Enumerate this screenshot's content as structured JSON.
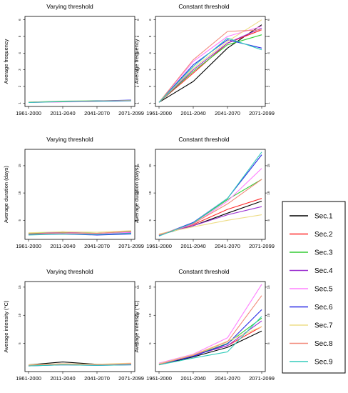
{
  "colors": {
    "Sec.1": "#000000",
    "Sec.2": "#ff2a2a",
    "Sec.3": "#33cc33",
    "Sec.4": "#9b30d0",
    "Sec.5": "#ff80ff",
    "Sec.6": "#2a2ae6",
    "Sec.7": "#eedd88",
    "Sec.8": "#f28a7a",
    "Sec.9": "#33ccbb"
  },
  "legend": {
    "placement": "right",
    "entries": [
      "Sec.1",
      "Sec.2",
      "Sec.3",
      "Sec.4",
      "Sec.5",
      "Sec.6",
      "Sec.7",
      "Sec.8",
      "Sec.9"
    ]
  },
  "chart_data": [
    {
      "type": "line",
      "title": "Varying threshold",
      "ylabel": "Average frequency",
      "xlabel": "",
      "categories": [
        "1961-2000",
        "2011-2040",
        "2041-2070",
        "2071-2099"
      ],
      "ylim": [
        0.8,
        6.2
      ],
      "yticks": [
        1,
        2,
        3,
        4,
        5,
        6
      ],
      "grid": false,
      "series": [
        {
          "name": "Sec.1",
          "values": [
            1.05,
            1.1,
            1.12,
            1.15
          ]
        },
        {
          "name": "Sec.2",
          "values": [
            1.05,
            1.08,
            1.1,
            1.14
          ]
        },
        {
          "name": "Sec.3",
          "values": [
            1.06,
            1.12,
            1.14,
            1.16
          ]
        },
        {
          "name": "Sec.4",
          "values": [
            1.04,
            1.08,
            1.1,
            1.13
          ]
        },
        {
          "name": "Sec.5",
          "values": [
            1.05,
            1.07,
            1.09,
            1.12
          ]
        },
        {
          "name": "Sec.6",
          "values": [
            1.05,
            1.1,
            1.13,
            1.18
          ]
        },
        {
          "name": "Sec.7",
          "values": [
            1.06,
            1.09,
            1.12,
            1.15
          ]
        },
        {
          "name": "Sec.8",
          "values": [
            1.05,
            1.1,
            1.12,
            1.17
          ]
        },
        {
          "name": "Sec.9",
          "values": [
            1.04,
            1.09,
            1.11,
            1.14
          ]
        }
      ]
    },
    {
      "type": "line",
      "title": "Constant threshold",
      "ylabel": "Average frequency",
      "xlabel": "",
      "categories": [
        "1961-2000",
        "2011-2040",
        "2041-2070",
        "2071-2099"
      ],
      "ylim": [
        0.8,
        6.2
      ],
      "yticks": [
        1,
        2,
        3,
        4,
        5,
        6
      ],
      "grid": false,
      "series": [
        {
          "name": "Sec.1",
          "values": [
            1.05,
            2.3,
            4.3,
            5.7
          ]
        },
        {
          "name": "Sec.2",
          "values": [
            1.05,
            2.8,
            4.6,
            5.4
          ]
        },
        {
          "name": "Sec.3",
          "values": [
            1.05,
            2.9,
            4.5,
            5.1
          ]
        },
        {
          "name": "Sec.4",
          "values": [
            1.05,
            3.0,
            4.6,
            5.5
          ]
        },
        {
          "name": "Sec.5",
          "values": [
            1.05,
            3.5,
            5.0,
            5.6
          ]
        },
        {
          "name": "Sec.6",
          "values": [
            1.05,
            3.3,
            4.8,
            4.3
          ]
        },
        {
          "name": "Sec.7",
          "values": [
            1.05,
            3.1,
            4.7,
            6.0
          ]
        },
        {
          "name": "Sec.8",
          "values": [
            1.05,
            3.6,
            5.3,
            5.4
          ]
        },
        {
          "name": "Sec.9",
          "values": [
            1.05,
            3.2,
            4.9,
            4.2
          ]
        }
      ]
    },
    {
      "type": "line",
      "title": "Varying threshold",
      "ylabel": "Average duration (days)",
      "xlabel": "",
      "categories": [
        "1961-2000",
        "2011-2040",
        "2041-2070",
        "2071-2099"
      ],
      "ylim": [
        1.5,
        18
      ],
      "yticks": [
        5,
        10,
        15
      ],
      "grid": false,
      "series": [
        {
          "name": "Sec.1",
          "values": [
            2.4,
            2.5,
            2.4,
            2.6
          ]
        },
        {
          "name": "Sec.2",
          "values": [
            2.5,
            2.7,
            2.5,
            2.8
          ]
        },
        {
          "name": "Sec.3",
          "values": [
            2.6,
            2.8,
            2.6,
            2.9
          ]
        },
        {
          "name": "Sec.4",
          "values": [
            2.4,
            2.9,
            2.5,
            2.7
          ]
        },
        {
          "name": "Sec.5",
          "values": [
            2.5,
            2.6,
            2.5,
            2.8
          ]
        },
        {
          "name": "Sec.6",
          "values": [
            2.4,
            2.5,
            2.3,
            2.5
          ]
        },
        {
          "name": "Sec.7",
          "values": [
            2.7,
            2.9,
            2.8,
            3.1
          ]
        },
        {
          "name": "Sec.8",
          "values": [
            2.5,
            2.7,
            2.6,
            3.0
          ]
        },
        {
          "name": "Sec.9",
          "values": [
            2.3,
            2.5,
            2.4,
            2.6
          ]
        }
      ]
    },
    {
      "type": "line",
      "title": "Constant threshold",
      "ylabel": "Average duration (days)",
      "xlabel": "",
      "categories": [
        "1961-2000",
        "2011-2040",
        "2041-2070",
        "2071-2099"
      ],
      "ylim": [
        1.5,
        18
      ],
      "yticks": [
        5,
        10,
        15
      ],
      "grid": false,
      "series": [
        {
          "name": "Sec.1",
          "values": [
            2.3,
            4.0,
            6.3,
            8.5
          ]
        },
        {
          "name": "Sec.2",
          "values": [
            2.3,
            4.2,
            7.0,
            9.0
          ]
        },
        {
          "name": "Sec.3",
          "values": [
            2.2,
            4.5,
            8.8,
            12.5
          ]
        },
        {
          "name": "Sec.4",
          "values": [
            2.4,
            4.0,
            6.0,
            7.5
          ]
        },
        {
          "name": "Sec.5",
          "values": [
            2.3,
            4.3,
            8.5,
            14.5
          ]
        },
        {
          "name": "Sec.6",
          "values": [
            2.2,
            4.6,
            9.0,
            17.0
          ]
        },
        {
          "name": "Sec.7",
          "values": [
            2.5,
            3.8,
            5.0,
            6.0
          ]
        },
        {
          "name": "Sec.8",
          "values": [
            2.3,
            4.4,
            8.0,
            12.5
          ]
        },
        {
          "name": "Sec.9",
          "values": [
            2.1,
            4.5,
            9.0,
            17.5
          ]
        }
      ]
    },
    {
      "type": "line",
      "title": "Varying threshold",
      "ylabel": "Average intensity (°C)",
      "xlabel": "",
      "categories": [
        "1961-2000",
        "2011-2040",
        "2041-2070",
        "2071-2099"
      ],
      "ylim": [
        0,
        16
      ],
      "yticks": [
        5,
        10,
        15
      ],
      "grid": false,
      "series": [
        {
          "name": "Sec.1",
          "values": [
            1.2,
            1.7,
            1.3,
            1.4
          ]
        },
        {
          "name": "Sec.2",
          "values": [
            1.1,
            1.4,
            1.2,
            1.3
          ]
        },
        {
          "name": "Sec.3",
          "values": [
            1.2,
            1.3,
            1.2,
            1.3
          ]
        },
        {
          "name": "Sec.4",
          "values": [
            1.0,
            1.4,
            1.1,
            1.3
          ]
        },
        {
          "name": "Sec.5",
          "values": [
            1.1,
            1.3,
            1.2,
            1.4
          ]
        },
        {
          "name": "Sec.6",
          "values": [
            1.0,
            1.2,
            1.1,
            1.2
          ]
        },
        {
          "name": "Sec.7",
          "values": [
            1.2,
            1.4,
            1.3,
            1.5
          ]
        },
        {
          "name": "Sec.8",
          "values": [
            1.1,
            1.3,
            1.2,
            1.4
          ]
        },
        {
          "name": "Sec.9",
          "values": [
            1.0,
            1.2,
            1.1,
            1.2
          ]
        }
      ]
    },
    {
      "type": "line",
      "title": "Constant threshold",
      "ylabel": "Average intensity (°C)",
      "xlabel": "",
      "categories": [
        "1961-2000",
        "2011-2040",
        "2041-2070",
        "2071-2099"
      ],
      "ylim": [
        0,
        16
      ],
      "yticks": [
        5,
        10,
        15
      ],
      "grid": false,
      "series": [
        {
          "name": "Sec.1",
          "values": [
            1.2,
            2.6,
            4.3,
            7.2
          ]
        },
        {
          "name": "Sec.2",
          "values": [
            1.3,
            2.9,
            4.6,
            8.0
          ]
        },
        {
          "name": "Sec.3",
          "values": [
            1.2,
            2.8,
            5.0,
            9.5
          ]
        },
        {
          "name": "Sec.4",
          "values": [
            1.3,
            2.9,
            4.6,
            9.0
          ]
        },
        {
          "name": "Sec.5",
          "values": [
            1.5,
            3.1,
            6.0,
            15.5
          ]
        },
        {
          "name": "Sec.6",
          "values": [
            1.3,
            2.7,
            4.9,
            11.0
          ]
        },
        {
          "name": "Sec.7",
          "values": [
            1.4,
            3.0,
            5.4,
            8.0
          ]
        },
        {
          "name": "Sec.8",
          "values": [
            1.3,
            2.9,
            5.3,
            13.5
          ]
        },
        {
          "name": "Sec.9",
          "values": [
            1.2,
            2.4,
            3.5,
            9.8
          ]
        }
      ]
    }
  ]
}
